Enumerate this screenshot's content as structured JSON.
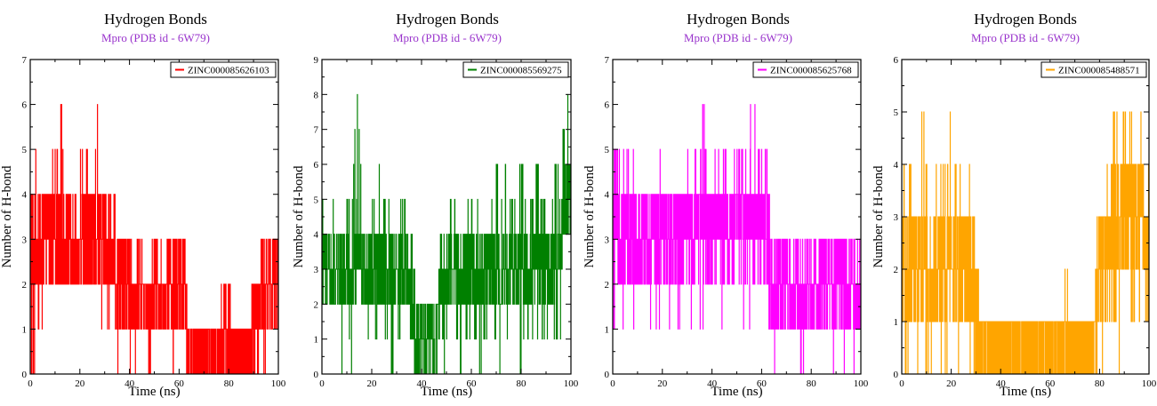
{
  "chart_data": [
    {
      "type": "line",
      "title": "Hydrogen Bonds",
      "subtitle": "Mpro (PDB id - 6W79)",
      "xlabel": "Time (ns)",
      "ylabel": "Number of H-bond",
      "xlim": [
        0,
        100
      ],
      "ylim": [
        0,
        7
      ],
      "xticks": [
        0,
        20,
        40,
        60,
        80,
        100
      ],
      "yticks": [
        0,
        1,
        2,
        3,
        4,
        5,
        6,
        7
      ],
      "legend_position": "top-right",
      "series": [
        {
          "name": "ZINC000085626103",
          "color": "#ff0000",
          "x": [
            0,
            2,
            4,
            6,
            8,
            10,
            12,
            14,
            16,
            18,
            20,
            22,
            24,
            26,
            28,
            30,
            32,
            34,
            36,
            38,
            40,
            42,
            44,
            46,
            48,
            50,
            52,
            54,
            56,
            58,
            60,
            62,
            64,
            66,
            68,
            70,
            72,
            74,
            76,
            78,
            80,
            82,
            84,
            86,
            88,
            90,
            92,
            94,
            96,
            98,
            100
          ],
          "ymin": [
            0,
            0,
            1,
            2,
            2,
            2,
            2,
            2,
            2,
            2,
            0,
            2,
            1,
            1,
            1,
            2,
            1,
            1,
            0,
            1,
            0,
            0,
            1,
            1,
            0,
            1,
            1,
            1,
            1,
            0,
            1,
            0,
            0,
            0,
            0,
            0,
            0,
            0,
            0,
            0,
            0,
            0,
            0,
            0,
            0,
            0,
            0,
            0,
            1,
            1,
            1
          ],
          "ymax": [
            5,
            5,
            4,
            4,
            4,
            5,
            6,
            5,
            4,
            4,
            5,
            5,
            4,
            5,
            6,
            4,
            4,
            4,
            3,
            3,
            3,
            2,
            3,
            2,
            2,
            3,
            3,
            2,
            3,
            3,
            3,
            3,
            1,
            1,
            1,
            1,
            1,
            1,
            1,
            2,
            2,
            1,
            1,
            1,
            1,
            2,
            2,
            3,
            3,
            3,
            3
          ],
          "mean": [
            3,
            3,
            2.5,
            3,
            3,
            3,
            3.5,
            3,
            3,
            3,
            2.5,
            3,
            3,
            3,
            3,
            3,
            2.5,
            2.5,
            2,
            2,
            2,
            1.5,
            2,
            2,
            1.5,
            2,
            2,
            1.5,
            2,
            2,
            2,
            2,
            0.5,
            0.5,
            0.5,
            0.5,
            0.5,
            0.5,
            0.5,
            1,
            1,
            0.5,
            0.5,
            0.5,
            0.5,
            1,
            1.5,
            2,
            2,
            2,
            2
          ]
        }
      ]
    },
    {
      "type": "line",
      "title": "Hydrogen Bonds",
      "subtitle": "Mpro (PDB id - 6W79)",
      "xlabel": "Time (ns)",
      "ylabel": "Number of H-bond",
      "xlim": [
        0,
        100
      ],
      "ylim": [
        0,
        9
      ],
      "xticks": [
        0,
        20,
        40,
        60,
        80,
        100
      ],
      "yticks": [
        0,
        1,
        2,
        3,
        4,
        5,
        6,
        7,
        8,
        9
      ],
      "legend_position": "top-right",
      "series": [
        {
          "name": "ZINC000085569275",
          "color": "#008000",
          "x": [
            0,
            2,
            4,
            6,
            8,
            10,
            12,
            14,
            16,
            18,
            20,
            22,
            24,
            26,
            28,
            30,
            32,
            34,
            36,
            38,
            40,
            42,
            44,
            46,
            48,
            50,
            52,
            54,
            56,
            58,
            60,
            62,
            64,
            66,
            68,
            70,
            72,
            74,
            76,
            78,
            80,
            82,
            84,
            86,
            88,
            90,
            92,
            94,
            96,
            98,
            100
          ],
          "ymin": [
            0,
            1,
            1,
            1,
            0,
            1,
            0,
            1,
            0,
            1,
            1,
            1,
            1,
            1,
            0,
            1,
            1,
            1,
            0,
            0,
            0,
            0,
            0,
            0,
            1,
            0,
            1,
            1,
            0,
            1,
            1,
            1,
            0,
            1,
            1,
            1,
            0,
            1,
            1,
            1,
            0,
            1,
            1,
            1,
            1,
            1,
            1,
            1,
            1,
            2,
            2
          ],
          "ymax": [
            5,
            4,
            5,
            5,
            4,
            5,
            5,
            8,
            6,
            5,
            5,
            6,
            5,
            5,
            5,
            6,
            5,
            5,
            4,
            2,
            2,
            2,
            2,
            2,
            4,
            4,
            5,
            5,
            4,
            5,
            5,
            5,
            5,
            4,
            5,
            6,
            5,
            6,
            5,
            5,
            6,
            5,
            5,
            6,
            5,
            5,
            5,
            6,
            6,
            8,
            8
          ],
          "mean": [
            3,
            3,
            2.5,
            3,
            2.5,
            3,
            2.5,
            3.5,
            3,
            3,
            3,
            3,
            3,
            3,
            3,
            3,
            3,
            3,
            2,
            1,
            1,
            1,
            1,
            1,
            2.5,
            2.5,
            3,
            3,
            2.5,
            3,
            3,
            3,
            2.5,
            3,
            3,
            3,
            2.5,
            3,
            3,
            3,
            3,
            3,
            3,
            3.5,
            3,
            3,
            3,
            3.5,
            4,
            5,
            5
          ]
        }
      ]
    },
    {
      "type": "line",
      "title": "Hydrogen Bonds",
      "subtitle": "Mpro (PDB id - 6W79)",
      "xlabel": "Time (ns)",
      "ylabel": "Number of H-bond",
      "xlim": [
        0,
        100
      ],
      "ylim": [
        0,
        7
      ],
      "xticks": [
        0,
        20,
        40,
        60,
        80,
        100
      ],
      "yticks": [
        0,
        1,
        2,
        3,
        4,
        5,
        6,
        7
      ],
      "legend_position": "top-right",
      "series": [
        {
          "name": "ZINC000085625768",
          "color": "#ff00ff",
          "x": [
            0,
            2,
            4,
            6,
            8,
            10,
            12,
            14,
            16,
            18,
            20,
            22,
            24,
            26,
            28,
            30,
            32,
            34,
            36,
            38,
            40,
            42,
            44,
            46,
            48,
            50,
            52,
            54,
            56,
            58,
            60,
            62,
            64,
            66,
            68,
            70,
            72,
            74,
            76,
            78,
            80,
            82,
            84,
            86,
            88,
            90,
            92,
            94,
            96,
            98,
            100
          ],
          "ymin": [
            1,
            2,
            1,
            2,
            1,
            2,
            1,
            2,
            1,
            1,
            2,
            1,
            2,
            1,
            2,
            2,
            1,
            2,
            1,
            2,
            2,
            2,
            1,
            2,
            2,
            2,
            1,
            2,
            1,
            2,
            2,
            1,
            1,
            0,
            1,
            1,
            0,
            1,
            0,
            1,
            1,
            0,
            1,
            1,
            0,
            1,
            1,
            0,
            1,
            0,
            1
          ],
          "ymax": [
            5,
            5,
            5,
            5,
            5,
            4,
            4,
            4,
            4,
            4,
            5,
            4,
            4,
            4,
            4,
            5,
            4,
            5,
            6,
            5,
            4,
            5,
            5,
            5,
            4,
            5,
            5,
            5,
            6,
            6,
            5,
            5,
            3,
            3,
            3,
            3,
            3,
            3,
            3,
            3,
            3,
            3,
            3,
            3,
            3,
            3,
            3,
            3,
            3,
            3,
            3
          ],
          "mean": [
            3.5,
            3.5,
            3,
            3.5,
            3,
            3,
            3,
            3,
            3,
            3,
            3.5,
            3,
            3,
            3,
            3,
            3.5,
            3,
            3.5,
            3.5,
            3.5,
            3,
            3.5,
            3,
            3.5,
            3,
            3.5,
            3,
            3.5,
            3.5,
            3.5,
            3.5,
            3,
            2,
            1.5,
            2,
            2,
            1.5,
            2,
            1.5,
            2,
            2,
            1.5,
            2,
            2,
            1.5,
            2,
            2,
            1.5,
            2,
            1.5,
            2
          ]
        }
      ]
    },
    {
      "type": "line",
      "title": "Hydrogen Bonds",
      "subtitle": "Mpro (PDB id - 6W79)",
      "xlabel": "Time (ns)",
      "ylabel": "Number of H-bond",
      "xlim": [
        0,
        100
      ],
      "ylim": [
        0,
        6
      ],
      "xticks": [
        0,
        20,
        40,
        60,
        80,
        100
      ],
      "yticks": [
        0,
        1,
        2,
        3,
        4,
        5,
        6
      ],
      "legend_position": "top-right",
      "series": [
        {
          "name": "ZINC000085488571",
          "color": "#ffa500",
          "x": [
            0,
            2,
            4,
            6,
            8,
            10,
            12,
            14,
            16,
            18,
            20,
            22,
            24,
            26,
            28,
            30,
            32,
            34,
            36,
            38,
            40,
            42,
            44,
            46,
            48,
            50,
            52,
            54,
            56,
            58,
            60,
            62,
            64,
            66,
            68,
            70,
            72,
            74,
            76,
            78,
            80,
            82,
            84,
            86,
            88,
            90,
            92,
            94,
            96,
            98,
            100
          ],
          "ymin": [
            0,
            0,
            1,
            0,
            1,
            0,
            0,
            1,
            0,
            0,
            1,
            0,
            0,
            1,
            0,
            0,
            0,
            0,
            0,
            0,
            0,
            0,
            0,
            0,
            0,
            0,
            0,
            0,
            0,
            0,
            0,
            0,
            0,
            0,
            0,
            0,
            0,
            0,
            0,
            0,
            1,
            0,
            1,
            1,
            0,
            1,
            1,
            1,
            1,
            1,
            1
          ],
          "ymax": [
            4,
            3,
            4,
            3,
            5,
            4,
            3,
            4,
            4,
            4,
            5,
            4,
            4,
            3,
            4,
            2,
            1,
            1,
            1,
            1,
            1,
            1,
            1,
            1,
            1,
            1,
            1,
            1,
            1,
            1,
            1,
            1,
            1,
            2,
            1,
            1,
            1,
            1,
            1,
            1,
            4,
            3,
            4,
            5,
            4,
            5,
            5,
            5,
            5,
            4,
            4
          ],
          "mean": [
            2,
            1.5,
            2,
            2,
            2.5,
            2,
            1.5,
            2,
            2,
            2,
            2.5,
            2,
            2,
            2,
            2,
            1,
            0.5,
            0.5,
            0.5,
            0.5,
            0.5,
            0.5,
            0.5,
            0.5,
            0.5,
            0.5,
            0.5,
            0.5,
            0.5,
            0.5,
            0.5,
            0.5,
            0.5,
            0.5,
            0.5,
            0.5,
            0.5,
            0.5,
            0.5,
            0.5,
            2.5,
            2,
            2.5,
            3,
            2.5,
            3,
            3,
            3,
            3,
            2.5,
            2.5
          ]
        }
      ]
    }
  ]
}
